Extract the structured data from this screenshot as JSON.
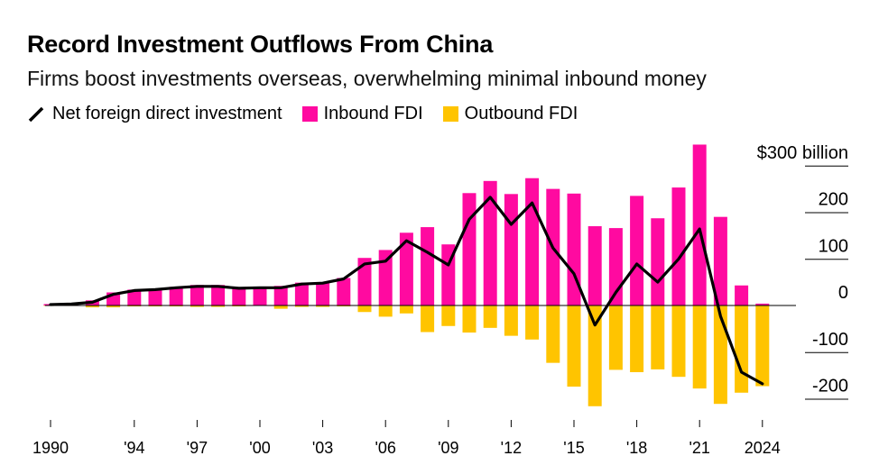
{
  "title": "Record Investment Outflows From China",
  "subtitle": "Firms boost investments overseas, overwhelming minimal inbound money",
  "colors": {
    "inbound": "#ff0aa0",
    "outbound": "#ffc400",
    "net": "#000000"
  },
  "chart_data": {
    "type": "bar",
    "title": "Record Investment Outflows From China",
    "subtitle": "Firms boost investments overseas, overwhelming minimal inbound money",
    "unit": "$ billion",
    "ylim": [
      -230,
      300
    ],
    "y_ticks": [
      300,
      200,
      100,
      0,
      -100,
      -200
    ],
    "y_tick_labels": [
      "$300 billion",
      "200",
      "100",
      "0",
      "-100",
      "-200"
    ],
    "x_tick_years": [
      1990,
      1994,
      1997,
      2000,
      2003,
      2006,
      2009,
      2012,
      2015,
      2018,
      2021,
      2024
    ],
    "x_tick_labels": [
      "1990",
      "'94",
      "'97",
      "'00",
      "'03",
      "'06",
      "'09",
      "'12",
      "'15",
      "'18",
      "'21",
      "2024"
    ],
    "legend_position": "top-left",
    "years": [
      1990,
      1991,
      1992,
      1993,
      1994,
      1995,
      1996,
      1997,
      1998,
      1999,
      2000,
      2001,
      2002,
      2003,
      2004,
      2005,
      2006,
      2007,
      2008,
      2009,
      2010,
      2011,
      2012,
      2013,
      2014,
      2015,
      2016,
      2017,
      2018,
      2019,
      2020,
      2021,
      2022,
      2023,
      2024
    ],
    "series": [
      {
        "name": "Inbound FDI",
        "kind": "bar",
        "values": [
          3,
          4,
          11,
          28,
          34,
          36,
          40,
          44,
          44,
          39,
          39,
          42,
          49,
          50,
          59,
          102,
          119,
          156,
          168,
          131,
          241,
          267,
          239,
          273,
          250,
          240,
          170,
          166,
          235,
          187,
          253,
          345,
          190,
          43,
          4
        ]
      },
      {
        "name": "Outbound FDI",
        "kind": "bar",
        "values": [
          -1,
          -1,
          -4,
          -4,
          -2,
          -2,
          -2,
          -3,
          -3,
          -2,
          -1,
          -7,
          -3,
          -3,
          -2,
          -14,
          -24,
          -17,
          -57,
          -44,
          -58,
          -48,
          -65,
          -73,
          -123,
          -174,
          -216,
          -138,
          -143,
          -137,
          -153,
          -178,
          -211,
          -187,
          -173
        ]
      },
      {
        "name": "Net foreign direct investment",
        "kind": "line",
        "values": [
          2,
          3,
          7,
          24,
          32,
          34,
          38,
          41,
          41,
          37,
          38,
          38,
          46,
          48,
          57,
          89,
          95,
          139,
          114,
          87,
          185,
          232,
          174,
          220,
          123,
          68,
          -42,
          28,
          89,
          50,
          100,
          164,
          -23,
          -143,
          -168
        ]
      }
    ]
  }
}
